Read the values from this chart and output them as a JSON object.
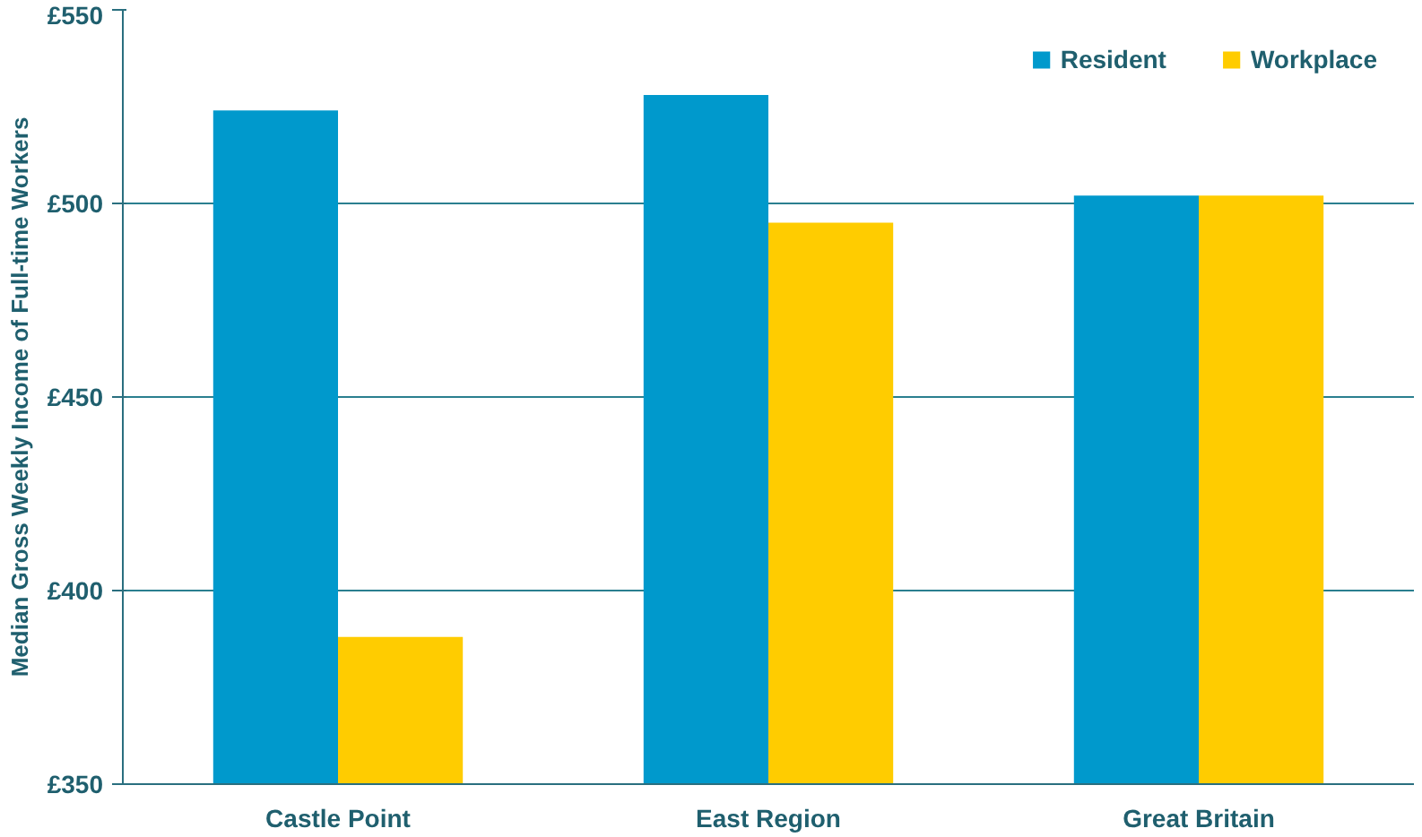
{
  "chart_data": {
    "type": "bar",
    "ylabel": "Median Gross Weekly Income of Full-time Workers",
    "categories": [
      "Castle Point",
      "East Region",
      "Great Britain"
    ],
    "series": [
      {
        "name": "Resident",
        "color": "#0099cc",
        "values": [
          524,
          528,
          502
        ]
      },
      {
        "name": "Workplace",
        "color": "#ffcc00",
        "values": [
          388,
          495,
          502
        ]
      }
    ],
    "ylim": [
      350,
      550
    ],
    "yticks": [
      {
        "value": 350,
        "label": "£350"
      },
      {
        "value": 400,
        "label": "£400"
      },
      {
        "value": 450,
        "label": "£450"
      },
      {
        "value": 500,
        "label": "£500"
      },
      {
        "value": 550,
        "label": "£550"
      }
    ],
    "grid": "y",
    "legend": "top right"
  }
}
